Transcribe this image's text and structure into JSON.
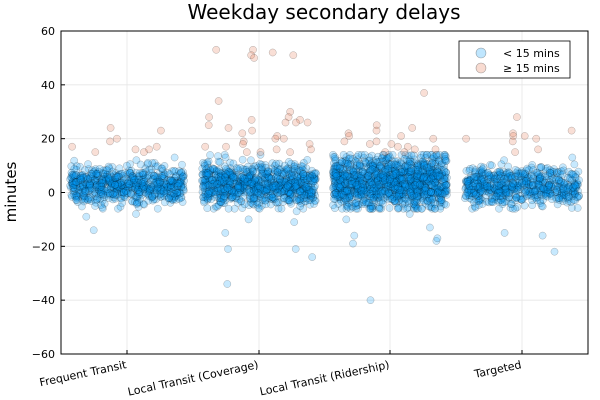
{
  "chart_data": {
    "type": "scatter",
    "title": "Weekday secondary delays",
    "ylabel": "minutes",
    "xlabel": "",
    "categories": [
      "Frequent Transit",
      "Local Transit (Coverage)",
      "Local Transit (Ridership)",
      "Targeted"
    ],
    "ylim": [
      -60,
      60
    ],
    "yticks": [
      -60,
      -40,
      -20,
      0,
      20,
      40,
      60
    ],
    "grid": true,
    "legend_position": "top-right",
    "series": [
      {
        "name": "< 15 mins",
        "color": "#009AFA",
        "dense_band": [
          {
            "category": "Frequent Transit",
            "y_low": -3,
            "y_high": 8,
            "n": 700
          },
          {
            "category": "Local Transit (Coverage)",
            "y_low": -3,
            "y_high": 9,
            "n": 900
          },
          {
            "category": "Local Transit (Ridership)",
            "y_low": -4,
            "y_high": 12,
            "n": 1300
          },
          {
            "category": "Targeted",
            "y_low": -3,
            "y_high": 8,
            "n": 650
          }
        ],
        "outliers": [
          {
            "category": "Frequent Transit",
            "y": [
              -9,
              -8,
              -14,
              12,
              13,
              11,
              -5
            ]
          },
          {
            "category": "Local Transit (Coverage)",
            "y": [
              -34,
              -21,
              -21,
              -24,
              -15,
              -11,
              -10,
              -7,
              13,
              12
            ]
          },
          {
            "category": "Local Transit (Ridership)",
            "y": [
              -40,
              -19,
              -18,
              -17,
              -16,
              -13,
              -10,
              -8,
              14,
              13
            ]
          },
          {
            "category": "Targeted",
            "y": [
              -22,
              -16,
              -15,
              -6,
              13,
              12
            ]
          }
        ]
      },
      {
        "name": "≥ 15 mins",
        "color": "#E26F46",
        "points": [
          {
            "category": "Frequent Transit",
            "y": [
              24,
              23,
              20,
              19,
              17,
              17,
              16,
              16,
              15,
              15
            ]
          },
          {
            "category": "Local Transit (Coverage)",
            "y": [
              53,
              53,
              52,
              51,
              51,
              50,
              34,
              30,
              28,
              28,
              27,
              27,
              26,
              26,
              26,
              25,
              24,
              23,
              22,
              21,
              20,
              20,
              19,
              18,
              18,
              17,
              17,
              16,
              16,
              15,
              15,
              15
            ]
          },
          {
            "category": "Local Transit (Ridership)",
            "y": [
              37,
              25,
              24,
              23,
              22,
              21,
              21,
              20,
              19,
              19,
              18,
              18,
              17,
              17,
              16,
              16,
              15,
              15
            ]
          },
          {
            "category": "Targeted",
            "y": [
              28,
              23,
              22,
              21,
              21,
              20,
              20,
              19,
              16,
              15
            ]
          }
        ]
      }
    ],
    "legend": [
      {
        "label": "< 15 mins",
        "color": "#009AFA"
      },
      {
        "label": "≥ 15 mins",
        "color": "#E26F46"
      }
    ]
  }
}
